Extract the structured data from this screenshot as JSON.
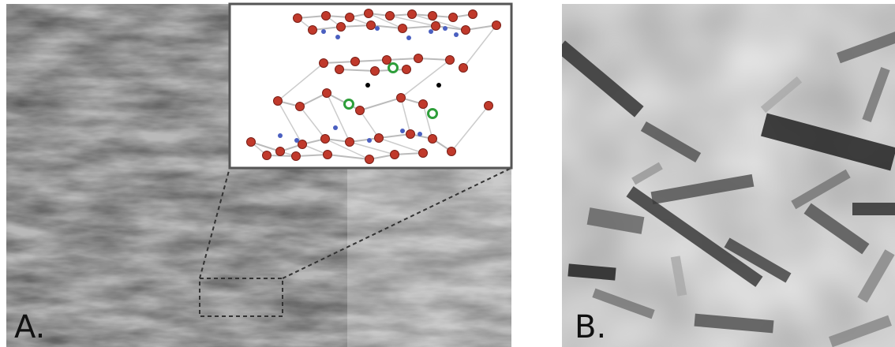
{
  "panels": [
    {
      "label": "A."
    },
    {
      "label": "B."
    }
  ]
}
